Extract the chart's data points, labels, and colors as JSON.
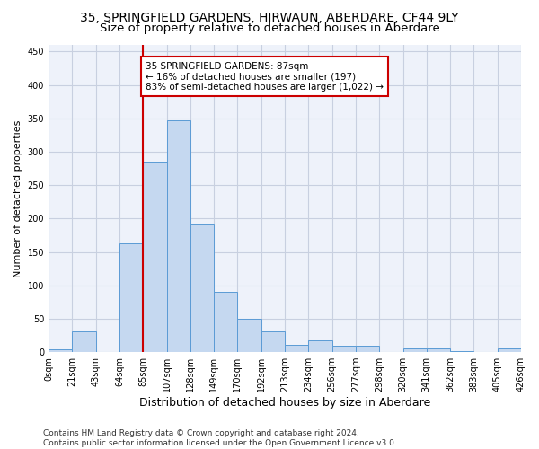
{
  "title": "35, SPRINGFIELD GARDENS, HIRWAUN, ABERDARE, CF44 9LY",
  "subtitle": "Size of property relative to detached houses in Aberdare",
  "xlabel": "Distribution of detached houses by size in Aberdare",
  "ylabel": "Number of detached properties",
  "bin_labels": [
    "0sqm",
    "21sqm",
    "43sqm",
    "64sqm",
    "85sqm",
    "107sqm",
    "128sqm",
    "149sqm",
    "170sqm",
    "192sqm",
    "213sqm",
    "234sqm",
    "256sqm",
    "277sqm",
    "298sqm",
    "320sqm",
    "341sqm",
    "362sqm",
    "383sqm",
    "405sqm",
    "426sqm"
  ],
  "bar_values": [
    4,
    31,
    0,
    163,
    285,
    347,
    192,
    90,
    50,
    31,
    11,
    17,
    10,
    10,
    0,
    5,
    5,
    1,
    0,
    5
  ],
  "bar_color": "#c5d8f0",
  "bar_edge_color": "#5b9bd5",
  "vline_x_index": 4,
  "annotation_text": "35 SPRINGFIELD GARDENS: 87sqm\n← 16% of detached houses are smaller (197)\n83% of semi-detached houses are larger (1,022) →",
  "annotation_box_color": "#ffffff",
  "annotation_box_edge_color": "#cc0000",
  "ylim": [
    0,
    460
  ],
  "yticks": [
    0,
    50,
    100,
    150,
    200,
    250,
    300,
    350,
    400,
    450
  ],
  "grid_color": "#c8d0e0",
  "background_color": "#eef2fa",
  "footer_line1": "Contains HM Land Registry data © Crown copyright and database right 2024.",
  "footer_line2": "Contains public sector information licensed under the Open Government Licence v3.0.",
  "title_fontsize": 10,
  "subtitle_fontsize": 9.5,
  "xlabel_fontsize": 9,
  "ylabel_fontsize": 8,
  "tick_fontsize": 7,
  "footer_fontsize": 6.5,
  "annotation_fontsize": 7.5
}
